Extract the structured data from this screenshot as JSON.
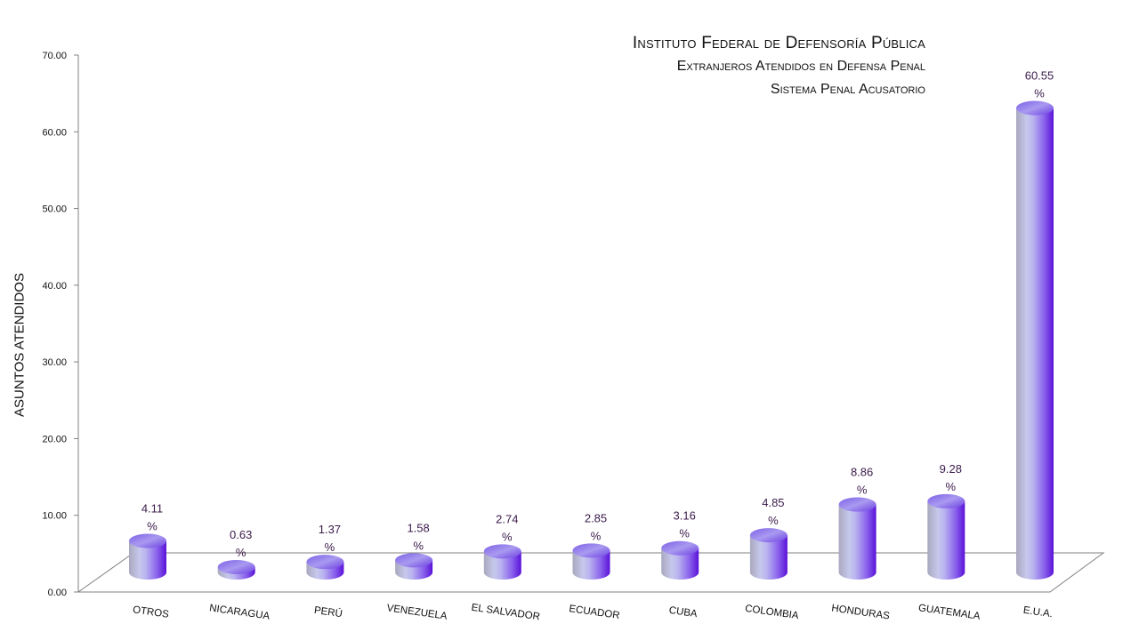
{
  "header": {
    "title": "Instituto Federal de Defensoría Pública",
    "subtitle": "Extranjeros Atendidos en Defensa Penal",
    "subtitle2": "Sistema Penal Acusatorio"
  },
  "chart_data": {
    "type": "bar",
    "title": "Instituto Federal de Defensoría Pública",
    "subtitle": "Extranjeros Atendidos en Defensa Penal / Sistema Penal Acusatorio",
    "xlabel": "",
    "ylabel": "ASUNTOS ATENDIDOS",
    "ylim": [
      0,
      70
    ],
    "yticks": [
      "0.00",
      "10.00",
      "20.00",
      "30.00",
      "40.00",
      "50.00",
      "60.00",
      "70.00"
    ],
    "categories": [
      "OTROS",
      "NICARAGUA",
      "PERÚ",
      "VENEZUELA",
      "EL SALVADOR",
      "ECUADOR",
      "CUBA",
      "COLOMBIA",
      "HONDURAS",
      "GUATEMALA",
      "E.U.A."
    ],
    "values": [
      4.11,
      0.63,
      1.37,
      1.58,
      2.74,
      2.85,
      3.16,
      4.85,
      8.86,
      9.28,
      60.55
    ],
    "data_labels": [
      "4.11 %",
      "0.63 %",
      "1.37 %",
      "1.58 %",
      "2.74 %",
      "2.85 %",
      "3.16 %",
      "4.85 %",
      "8.86 %",
      "9.28 %",
      "60.55 %"
    ],
    "grid": false,
    "legend": "none",
    "bar_style": "3d-cylinder",
    "colors": {
      "bar_light": "#c9c4f2",
      "bar_mid": "#9b8ce8",
      "bar_dark": "#6a1de0",
      "bar_grey": "#a7a7c0",
      "label": "#3a1a4a",
      "axis": "#808080"
    }
  }
}
